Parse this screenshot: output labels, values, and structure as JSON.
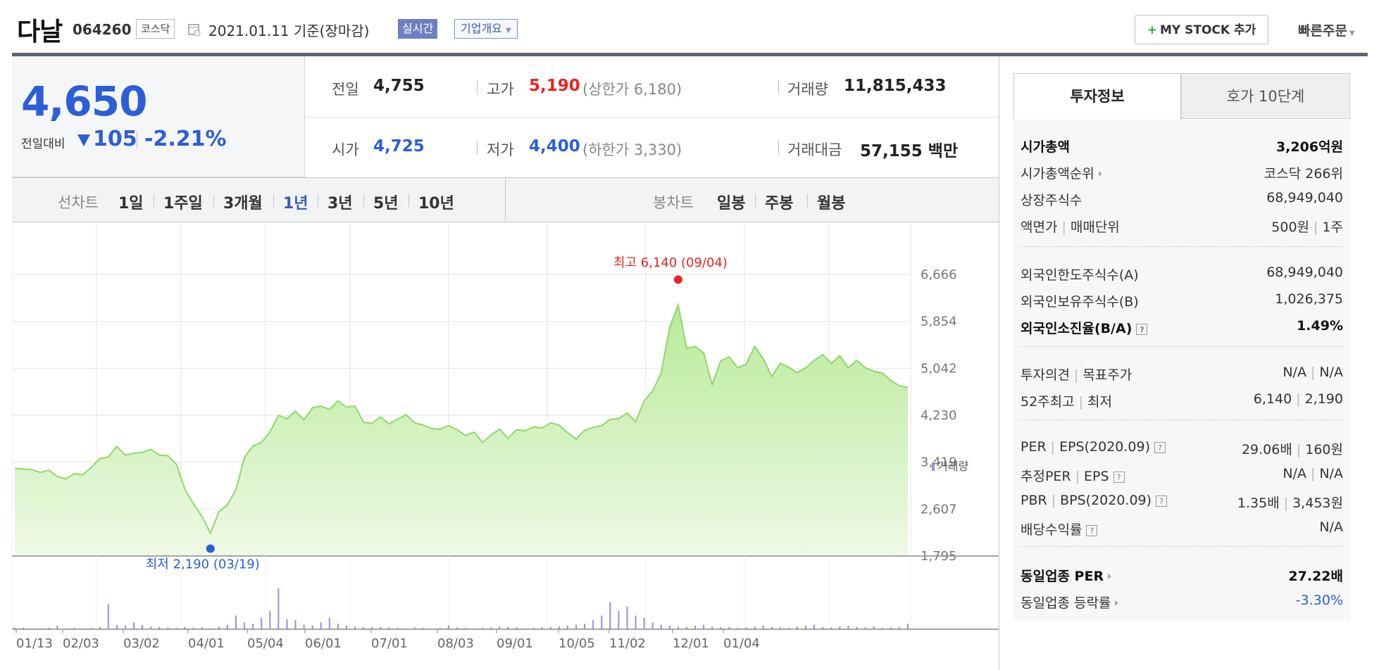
{
  "header": {
    "name": "다날",
    "code": "064260",
    "market": "코스닥",
    "date": "2021.01.11 기준(장마감)",
    "realtime": "실시간",
    "company_overview": "기업개요",
    "mystock_button": "MY STOCK 추가",
    "mystock_plus": "+",
    "quick_order": "빠른주문"
  },
  "price": {
    "current": "4,650",
    "change_label": "전일대비",
    "change": "105",
    "rate": "-2.21%",
    "direction": "down"
  },
  "summary": {
    "prev_label": "전일",
    "prev": "4,755",
    "high_label": "고가",
    "high": "5,190",
    "upper_limit": "(상한가 6,180)",
    "volume_label": "거래량",
    "volume": "11,815,433",
    "open_label": "시가",
    "open": "4,725",
    "low_label": "저가",
    "low": "4,400",
    "lower_limit": "(하한가 3,330)",
    "amount_label": "거래대금",
    "amount": "57,155",
    "amount_unit": "백만"
  },
  "periods": {
    "line_label": "선차트",
    "line_items": [
      "1일",
      "1주일",
      "3개월",
      "1년",
      "3년",
      "5년",
      "10년"
    ],
    "active": "1년",
    "candle_label": "봉차트",
    "candle_items": [
      "일봉",
      "주봉",
      "월봉"
    ]
  },
  "chart_data": {
    "type": "area",
    "y_ticks": [
      "6,666",
      "5,854",
      "5,042",
      "4,230",
      "3,419",
      "2,607",
      "1,795"
    ],
    "ylim": [
      1795,
      6666
    ],
    "x_ticks": [
      "01/13",
      "02/03",
      "03/02",
      "04/01",
      "05/04",
      "06/01",
      "07/01",
      "08/03",
      "09/01",
      "10/05",
      "11/02",
      "12/01",
      "01/04"
    ],
    "high_annotation": "최고 6,140 (09/04)",
    "low_annotation": "최저 2,190 (03/19)",
    "volume_label": "거래량",
    "series": [
      {
        "values": [
          3310,
          3300,
          3290,
          3240,
          3280,
          3170,
          3130,
          3220,
          3200,
          3330,
          3480,
          3510,
          3690,
          3540,
          3570,
          3590,
          3640,
          3540,
          3530,
          3380,
          2950,
          2700,
          2480,
          2190,
          2560,
          2680,
          2940,
          3500,
          3700,
          3760,
          3940,
          4230,
          4170,
          4300,
          4150,
          4360,
          4390,
          4330,
          4480,
          4370,
          4390,
          4110,
          4090,
          4200,
          4080,
          4160,
          4240,
          4100,
          4060,
          4000,
          3990,
          4050,
          3980,
          3880,
          3940,
          3760,
          3890,
          3990,
          3830,
          3980,
          3960,
          4030,
          4010,
          4100,
          4060,
          3930,
          3820,
          3970,
          4020,
          4050,
          4160,
          4170,
          4270,
          4120,
          4480,
          4650,
          4960,
          5750,
          6140,
          5390,
          5420,
          5310,
          4760,
          5170,
          5240,
          5050,
          5120,
          5420,
          5210,
          4900,
          5130,
          5060,
          4970,
          5050,
          5180,
          5280,
          5130,
          5260,
          5050,
          5180,
          5050,
          4990,
          4960,
          4830,
          4740,
          4710
        ]
      }
    ],
    "volume": [
      4,
      3,
      2,
      2,
      3,
      8,
      2,
      3,
      2,
      3,
      5,
      55,
      10,
      8,
      15,
      9,
      6,
      5,
      4,
      3,
      5,
      3,
      4,
      2,
      6,
      10,
      30,
      15,
      12,
      25,
      40,
      90,
      22,
      20,
      10,
      8,
      15,
      25,
      12,
      8,
      6,
      4,
      5,
      5,
      4,
      3,
      2,
      4,
      3,
      2,
      3,
      8,
      4,
      3,
      2,
      3,
      4,
      6,
      5,
      4,
      2,
      3,
      4,
      5,
      6,
      8,
      10,
      12,
      20,
      30,
      60,
      40,
      50,
      30,
      25,
      15,
      10,
      8,
      6,
      5,
      8,
      10,
      6,
      4,
      5,
      3,
      4,
      6,
      8,
      5,
      4,
      3,
      6,
      8,
      10,
      5,
      4,
      6,
      8,
      5,
      4,
      6,
      3,
      4,
      5,
      12
    ]
  },
  "right_panel": {
    "tabs": [
      "투자정보",
      "호가 10단계"
    ],
    "rows": [
      {
        "k": "시가총액",
        "v": "3,206억원",
        "bold": true
      },
      {
        "k": "시가총액순위",
        "v": "코스닥 266위",
        "tri": true
      },
      {
        "k": "상장주식수",
        "v": "68,949,040"
      },
      {
        "k": "액면가",
        "k2": "매매단위",
        "v": "500원",
        "v2": "1주"
      },
      {
        "k": "외국인한도주식수(A)",
        "v": "68,949,040"
      },
      {
        "k": "외국인보유주식수(B)",
        "v": "1,026,375"
      },
      {
        "k": "외국인소진율(B/A)",
        "v": "1.49%",
        "bold": true,
        "q": true
      },
      {
        "k": "투자의견",
        "k2": "목표주가",
        "v": "N/A",
        "v2": "N/A"
      },
      {
        "k": "52주최고",
        "k2": "최저",
        "v": "6,140",
        "v2": "2,190"
      },
      {
        "k": "PER",
        "k2": "EPS(2020.09)",
        "v": "29.06배",
        "v2": "160원",
        "q": true
      },
      {
        "k": "추정PER",
        "k2": "EPS",
        "v": "N/A",
        "v2": "N/A",
        "q": true
      },
      {
        "k": "PBR",
        "k2": "BPS(2020.09)",
        "v": "1.35배",
        "v2": "3,453원",
        "q": true
      },
      {
        "k": "배당수익률",
        "v": "N/A",
        "q": true
      },
      {
        "k": "동일업종 PER",
        "v": "27.22배",
        "bold": true,
        "tri": true
      },
      {
        "k": "동일업종 등락률",
        "v": "-3.30%",
        "tri": true,
        "blue": true
      }
    ]
  },
  "colors": {
    "accent": "#2c5ed7",
    "up": "#e22222",
    "chart_line": "#8fd86a",
    "chart_fill": "#c9efb0"
  }
}
